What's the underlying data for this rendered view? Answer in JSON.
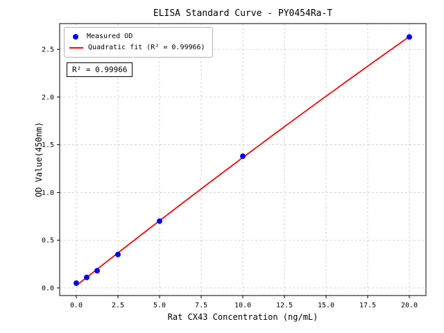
{
  "chart_data": {
    "type": "scatter",
    "title": "ELISA Standard Curve - PY0454Ra-T",
    "xlabel": "Rat CX43 Concentration (ng/mL)",
    "ylabel": "OD Value(450nm)",
    "x": [
      0,
      0.625,
      1.25,
      2.5,
      5,
      10,
      20
    ],
    "y": [
      0.05,
      0.11,
      0.18,
      0.35,
      0.7,
      1.38,
      2.63
    ],
    "series": [
      {
        "name": "Measured OD",
        "type": "scatter",
        "color": "#0000ff"
      },
      {
        "name": "Quadratic fit",
        "type": "line",
        "color": "#ff0000",
        "fit": "quadratic",
        "r_squared": 0.99966
      }
    ],
    "xlim": [
      -1,
      21
    ],
    "ylim": [
      -0.08,
      2.77
    ],
    "xtick_values": [
      0,
      2.5,
      5,
      7.5,
      10,
      12.5,
      15,
      17.5,
      20
    ],
    "xtick_labels": [
      "0.0",
      "2.5",
      "5.0",
      "7.5",
      "10.0",
      "12.5",
      "15.0",
      "17.5",
      "20.0"
    ],
    "ytick_values": [
      0,
      0.5,
      1.0,
      1.5,
      2.0,
      2.5
    ],
    "ytick_labels": [
      "0.0",
      "0.5",
      "1.0",
      "1.5",
      "2.0",
      "2.5"
    ],
    "grid": true,
    "background": "#ffffff",
    "legend": {
      "position": "upper-left",
      "entries": [
        {
          "label": "Measured OD",
          "marker": "dot",
          "color": "#0000ff"
        },
        {
          "label": "Quadratic fit (R² = 0.99966)",
          "marker": "line",
          "color": "#ff0000"
        }
      ]
    },
    "annotation": "R² = 0.99966"
  }
}
